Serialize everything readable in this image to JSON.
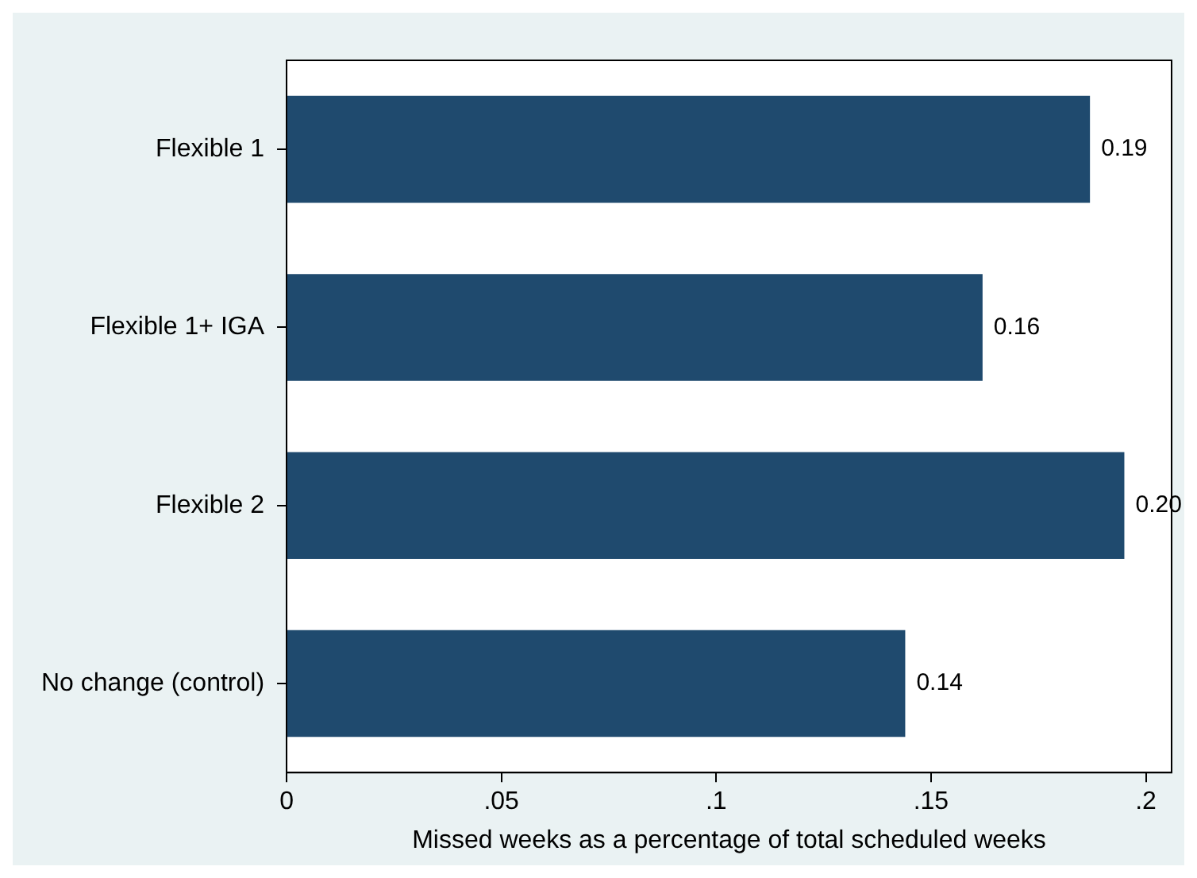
{
  "chart_data": {
    "type": "bar",
    "orientation": "horizontal",
    "xlabel": "Missed weeks as a percentage of total scheduled weeks",
    "categories": [
      "Flexible 1",
      "Flexible 1+ IGA",
      "Flexible 2",
      "No change (control)"
    ],
    "values": [
      0.187,
      0.162,
      0.195,
      0.144
    ],
    "value_labels": [
      "0.19",
      "0.16",
      "0.20",
      "0.14"
    ],
    "color": "#1f4a6e",
    "xlim": [
      0,
      0.206
    ],
    "xticks": [
      {
        "value": 0,
        "label": "0"
      },
      {
        "value": 0.05,
        "label": ".05"
      },
      {
        "value": 0.1,
        "label": ".1"
      },
      {
        "value": 0.15,
        "label": ".15"
      },
      {
        "value": 0.2,
        "label": ".2"
      }
    ],
    "grid": false,
    "legend": false
  }
}
